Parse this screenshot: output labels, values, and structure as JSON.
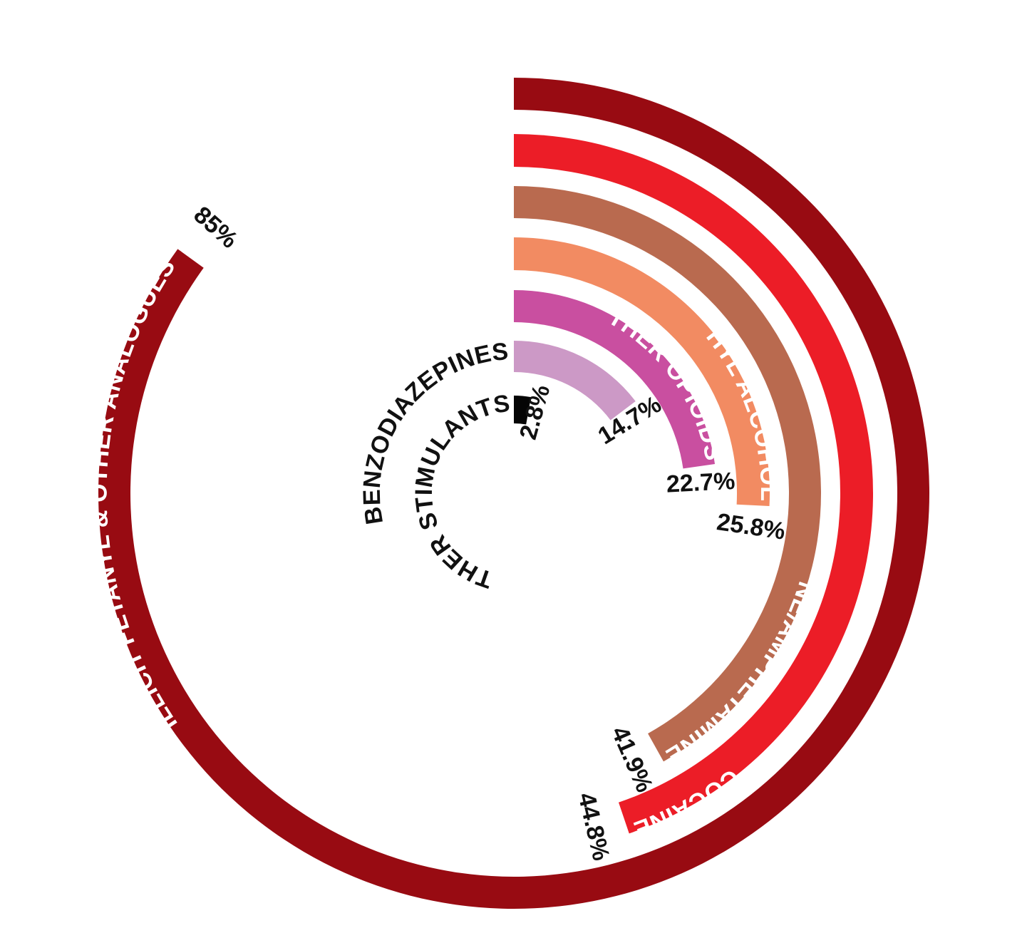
{
  "chart_data": {
    "type": "radial-bar",
    "unit": "%",
    "scale_max": 100,
    "series": [
      {
        "name": "ILLICIT FETANYL & OTHER ANALOGUES",
        "value": 85,
        "value_label": "85%",
        "color": "#980B12",
        "label_color": "#FFFFFF"
      },
      {
        "name": "COCAINE",
        "value": 44.8,
        "value_label": "44.8%",
        "color": "#EC1D27",
        "label_color": "#FFFFFF"
      },
      {
        "name": "METHAMPHETAMINE/AMPHETAMINE",
        "value": 41.9,
        "value_label": "41.9%",
        "color": "#B96A4F",
        "label_color": "#FFFFFF"
      },
      {
        "name": "ETHYL ALCOHOL",
        "value": 25.8,
        "value_label": "25.8%",
        "color": "#F28B62",
        "label_color": "#FFFFFF"
      },
      {
        "name": "OTHER OPIOIDS",
        "value": 22.7,
        "value_label": "22.7%",
        "color": "#C94FA0",
        "label_color": "#FFFFFF"
      },
      {
        "name": "BENZODIAZEPINES",
        "value": 14.7,
        "value_label": "14.7%",
        "color": "#CC99C6",
        "label_color": "#111111"
      },
      {
        "name": "OTHER STIMULANTS",
        "value": 2.8,
        "value_label": "2.8%",
        "color": "#050505",
        "label_color": "#111111"
      }
    ]
  }
}
